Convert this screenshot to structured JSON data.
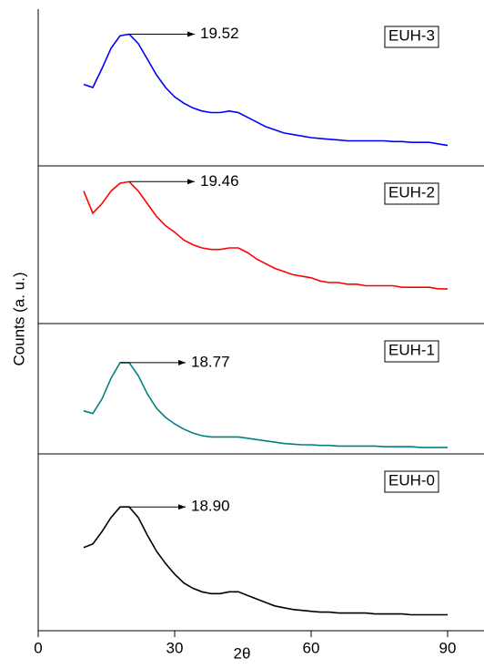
{
  "chart_data": [
    {
      "type": "line",
      "xlim": [
        0,
        98
      ],
      "ylim": [
        0,
        100
      ],
      "annotation": "19.52",
      "ylabel": "Counts (a. u.)",
      "x": [
        10,
        12,
        14,
        16,
        18,
        20,
        22,
        24,
        26,
        28,
        30,
        32,
        34,
        36,
        38,
        40,
        42,
        44,
        46,
        48,
        50,
        52,
        54,
        56,
        58,
        60,
        62,
        64,
        66,
        68,
        70,
        72,
        74,
        76,
        78,
        80,
        82,
        84,
        86,
        88,
        90
      ],
      "series": [
        {
          "name": "EUH-3",
          "color": "#0000ff",
          "values": [
            52,
            50,
            62,
            75,
            83,
            84,
            78,
            68,
            58,
            50,
            44,
            40,
            37,
            35,
            34,
            34,
            35,
            34,
            31,
            28,
            25,
            23,
            21,
            20,
            19,
            18,
            17.5,
            17,
            16.5,
            16,
            16,
            16,
            16,
            16,
            15.5,
            15.5,
            15,
            15,
            15,
            14,
            13
          ]
        }
      ]
    },
    {
      "type": "line",
      "xlim": [
        0,
        98
      ],
      "ylim": [
        0,
        100
      ],
      "annotation": "19.46",
      "x": [
        10,
        12,
        14,
        16,
        18,
        20,
        22,
        24,
        26,
        28,
        30,
        32,
        34,
        36,
        38,
        40,
        42,
        44,
        46,
        48,
        50,
        52,
        54,
        56,
        58,
        60,
        62,
        64,
        66,
        68,
        70,
        72,
        74,
        76,
        78,
        80,
        82,
        84,
        86,
        88,
        90
      ],
      "series": [
        {
          "name": "EUH-2",
          "color": "#ff0000",
          "values": [
            84,
            70,
            76,
            84,
            89,
            90,
            84,
            76,
            68,
            62,
            58,
            53,
            50,
            48,
            47,
            47,
            48,
            48,
            45,
            41,
            38,
            35,
            33,
            31,
            30,
            29,
            27,
            26,
            26,
            25,
            25,
            24,
            24,
            24,
            24,
            23,
            23,
            23,
            23,
            22,
            22
          ]
        }
      ]
    },
    {
      "type": "line",
      "xlim": [
        0,
        98
      ],
      "ylim": [
        0,
        100
      ],
      "annotation": "18.77",
      "x": [
        10,
        12,
        14,
        16,
        18,
        20,
        22,
        24,
        26,
        28,
        30,
        32,
        34,
        36,
        38,
        40,
        42,
        44,
        46,
        48,
        50,
        52,
        54,
        56,
        58,
        60,
        62,
        64,
        66,
        68,
        70,
        72,
        74,
        76,
        78,
        80,
        82,
        84,
        86,
        88,
        90
      ],
      "series": [
        {
          "name": "EUH-1",
          "color": "#008080",
          "values": [
            33,
            31,
            42,
            58,
            70,
            70,
            60,
            46,
            35,
            28,
            23,
            19,
            16,
            14,
            13,
            13,
            13,
            13,
            12,
            11,
            10,
            9,
            8,
            7.5,
            7,
            7,
            6.5,
            6.5,
            6,
            6,
            6,
            6,
            6,
            5.5,
            5.5,
            5.5,
            5.5,
            5,
            5,
            5,
            5
          ]
        }
      ]
    },
    {
      "type": "line",
      "xlim": [
        0,
        98
      ],
      "ylim": [
        0,
        100
      ],
      "annotation": "18.90",
      "xlabel": "2θ",
      "xticks": [
        0,
        30,
        60,
        90
      ],
      "x": [
        10,
        12,
        14,
        16,
        18,
        20,
        22,
        24,
        26,
        28,
        30,
        32,
        34,
        36,
        38,
        40,
        42,
        44,
        46,
        48,
        50,
        52,
        54,
        56,
        58,
        60,
        62,
        64,
        66,
        68,
        70,
        72,
        74,
        76,
        78,
        80,
        82,
        84,
        86,
        88,
        90
      ],
      "series": [
        {
          "name": "EUH-0",
          "color": "#000000",
          "values": [
            47,
            49,
            56,
            64,
            70,
            70,
            64,
            54,
            45,
            38,
            32,
            27,
            24,
            22,
            21,
            21,
            22,
            22,
            20,
            18,
            16,
            14,
            13,
            12,
            11.5,
            11,
            10.5,
            10.5,
            10,
            10,
            10,
            10,
            9.5,
            9.5,
            9.5,
            9.5,
            9,
            9,
            9,
            9,
            9
          ]
        }
      ]
    }
  ]
}
